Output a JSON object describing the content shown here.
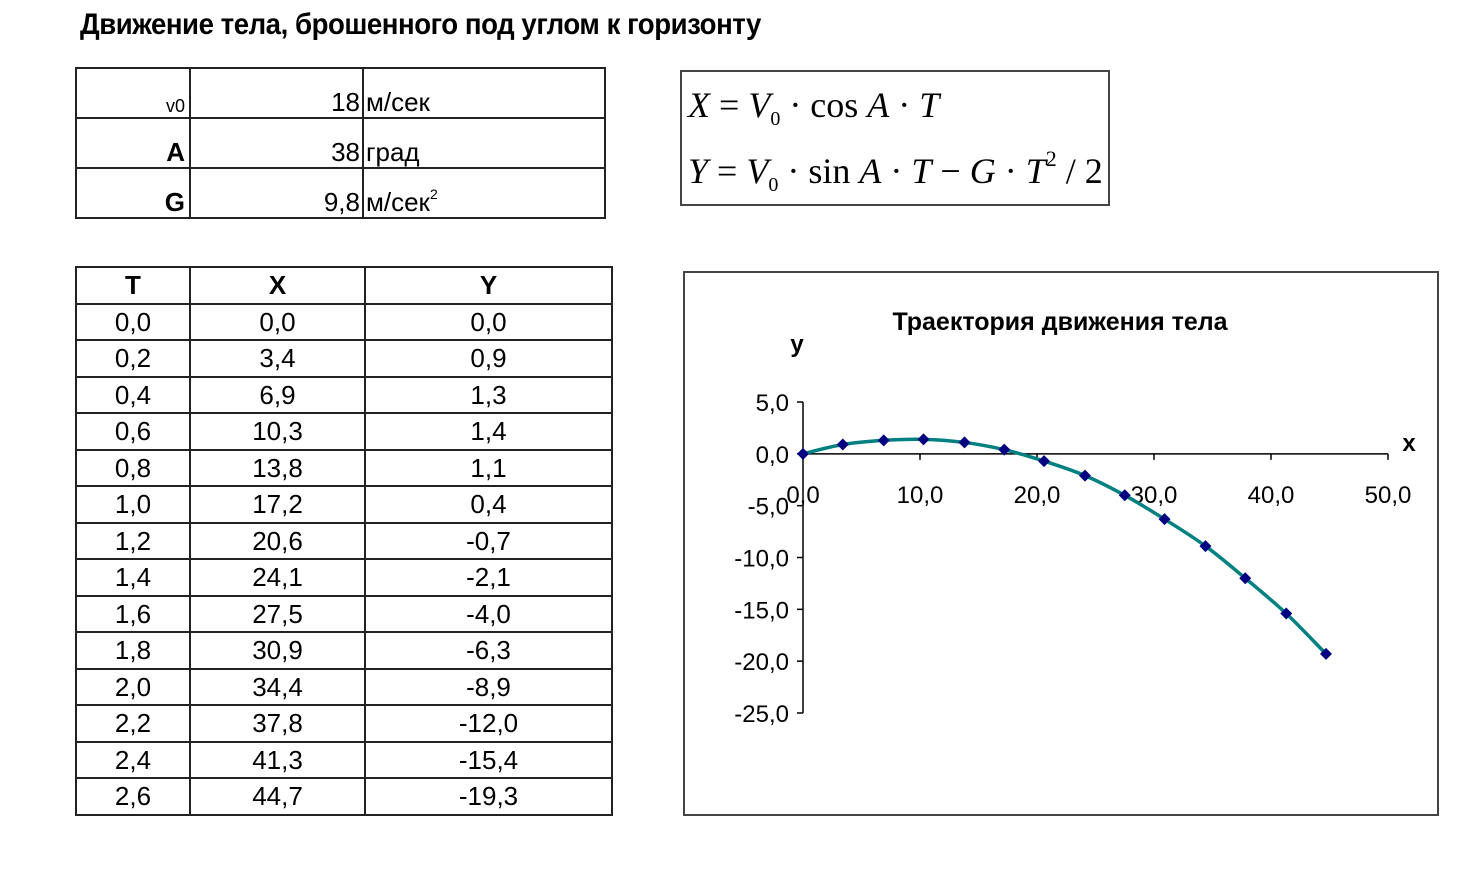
{
  "title": "Движение тела, брошенного под углом к горизонту",
  "params": [
    {
      "name": "v0",
      "value": "18",
      "unit": "м/сек",
      "unit_sup": ""
    },
    {
      "name": "A",
      "value": "38",
      "unit": "град",
      "unit_sup": ""
    },
    {
      "name": "G",
      "value": "9,8",
      "unit": "м/сек",
      "unit_sup": "2"
    }
  ],
  "formulas": {
    "x": {
      "lhs": "X",
      "eq": " = ",
      "v": "V",
      "sub": "0",
      "rest1": " · cos ",
      "a": "A",
      "dot": " · ",
      "t": "T"
    },
    "y": {
      "lhs": "Y",
      "eq": " = ",
      "v": "V",
      "sub": "0",
      "rest1": " · sin ",
      "a": "A",
      "dot": " · ",
      "t": "T",
      "minus": " − ",
      "g": "G",
      "dot2": " · ",
      "t2": "T",
      "pow": "2",
      "div": " / 2"
    }
  },
  "table": {
    "headers": [
      "T",
      "X",
      "Y"
    ],
    "rows": [
      [
        "0,0",
        "0,0",
        "0,0"
      ],
      [
        "0,2",
        "3,4",
        "0,9"
      ],
      [
        "0,4",
        "6,9",
        "1,3"
      ],
      [
        "0,6",
        "10,3",
        "1,4"
      ],
      [
        "0,8",
        "13,8",
        "1,1"
      ],
      [
        "1,0",
        "17,2",
        "0,4"
      ],
      [
        "1,2",
        "20,6",
        "-0,7"
      ],
      [
        "1,4",
        "24,1",
        "-2,1"
      ],
      [
        "1,6",
        "27,5",
        "-4,0"
      ],
      [
        "1,8",
        "30,9",
        "-6,3"
      ],
      [
        "2,0",
        "34,4",
        "-8,9"
      ],
      [
        "2,2",
        "37,8",
        "-12,0"
      ],
      [
        "2,4",
        "41,3",
        "-15,4"
      ],
      [
        "2,6",
        "44,7",
        "-19,3"
      ]
    ]
  },
  "chart_data": {
    "type": "scatter",
    "title": "Траектория движения тела",
    "xlabel": "x",
    "ylabel": "y",
    "xlim": [
      0,
      50
    ],
    "ylim": [
      -25,
      5
    ],
    "x_ticks": [
      "0,0",
      "10,0",
      "20,0",
      "30,0",
      "40,0",
      "50,0"
    ],
    "y_ticks": [
      "5,0",
      "0,0",
      "-5,0",
      "-10,0",
      "-15,0",
      "-20,0",
      "-25,0"
    ],
    "grid": false,
    "line_color": "#008080",
    "marker_color": "#000080",
    "series": [
      {
        "x": [
          0.0,
          3.4,
          6.9,
          10.3,
          13.8,
          17.2,
          20.6,
          24.1,
          27.5,
          30.9,
          34.4,
          37.8,
          41.3,
          44.7
        ],
        "y": [
          0.0,
          0.9,
          1.3,
          1.4,
          1.1,
          0.4,
          -0.7,
          -2.1,
          -4.0,
          -6.3,
          -8.9,
          -12.0,
          -15.4,
          -19.3
        ]
      }
    ]
  }
}
